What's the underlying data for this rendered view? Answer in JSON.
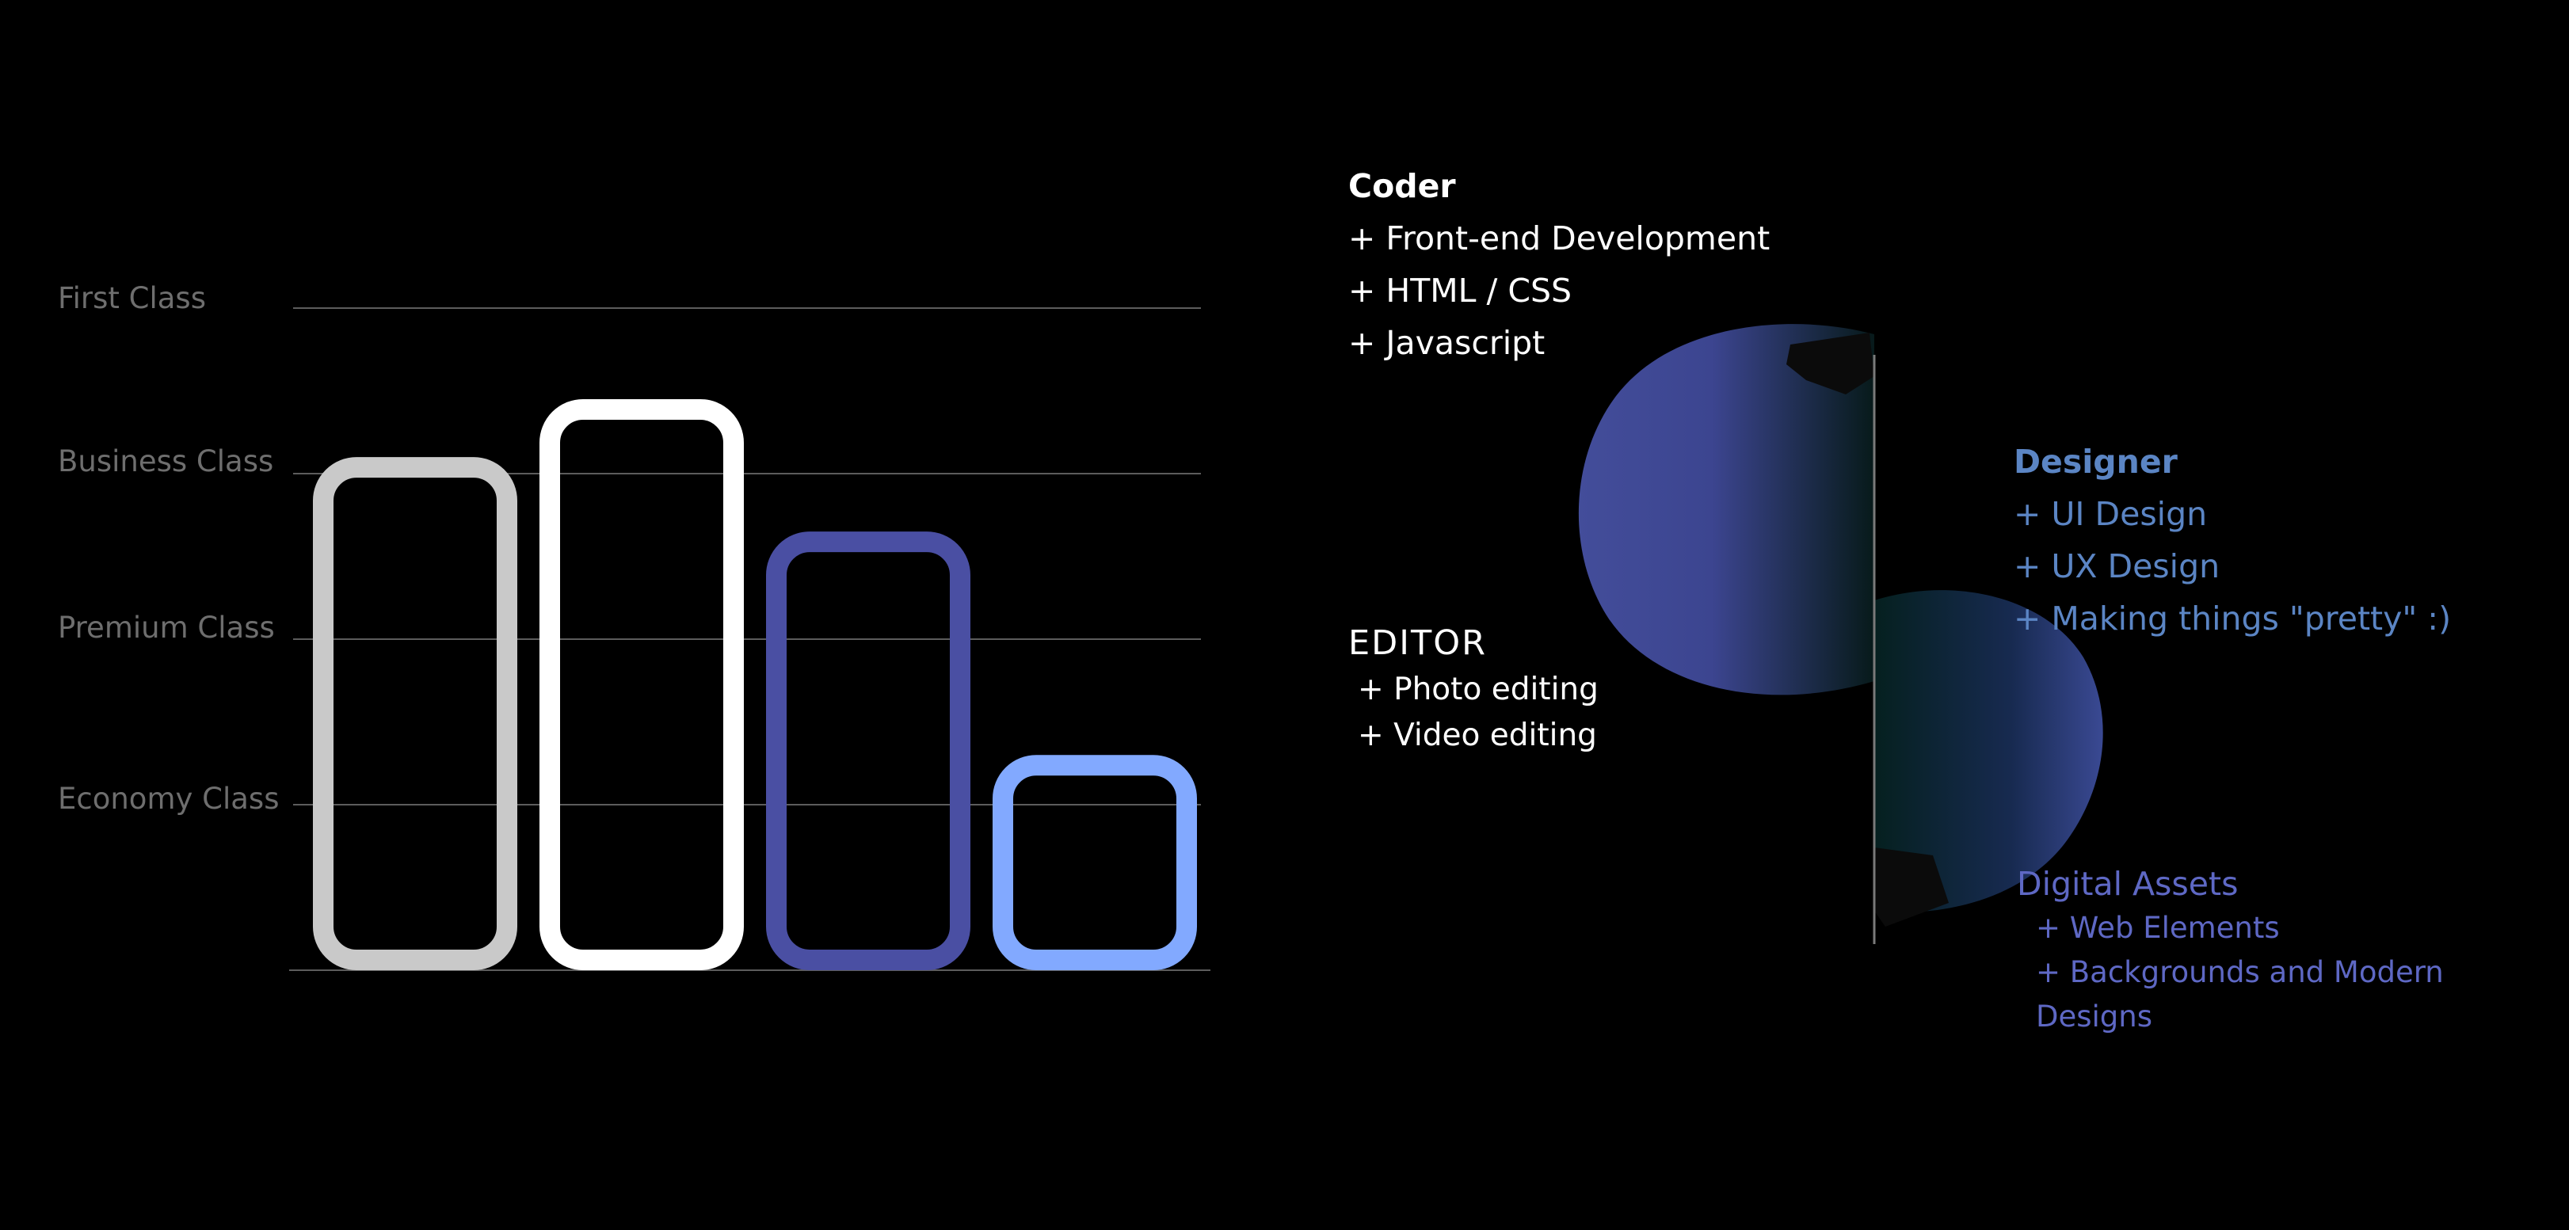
{
  "chart_data": {
    "type": "bar",
    "categories": [
      "",
      "",
      "",
      ""
    ],
    "y_tick_labels": [
      "First Class",
      "Business Class",
      "Premium Class",
      "Economy Class"
    ],
    "values": [
      3.1,
      3.45,
      2.65,
      1.3
    ],
    "ylim": [
      0,
      4
    ],
    "colors": [
      "#c9c9c9",
      "#ffffff",
      "#4a4fa3",
      "#82a9ff"
    ],
    "grid": true,
    "title": "",
    "xlabel": "",
    "ylabel": ""
  },
  "coder": {
    "title": "Coder",
    "items": [
      "+ Front-end Development",
      "+ HTML / CSS",
      "+ Javascript"
    ]
  },
  "designer": {
    "title": "Designer",
    "items": [
      "+ UI Design",
      "+ UX Design",
      "+ Making things \"pretty\" :)"
    ]
  },
  "editor": {
    "title": "EDITOR",
    "items": [
      "+ Photo editing",
      "+ Video editing"
    ]
  },
  "assets": {
    "title": "Digital Assets",
    "items": [
      "+ Web Elements",
      "+ Backgrounds and Modern Designs"
    ]
  },
  "colors": {
    "background": "#000000",
    "designer_text": "#5b85c4",
    "assets_text": "#5e68c4",
    "circle_blue": "#434d9a"
  }
}
